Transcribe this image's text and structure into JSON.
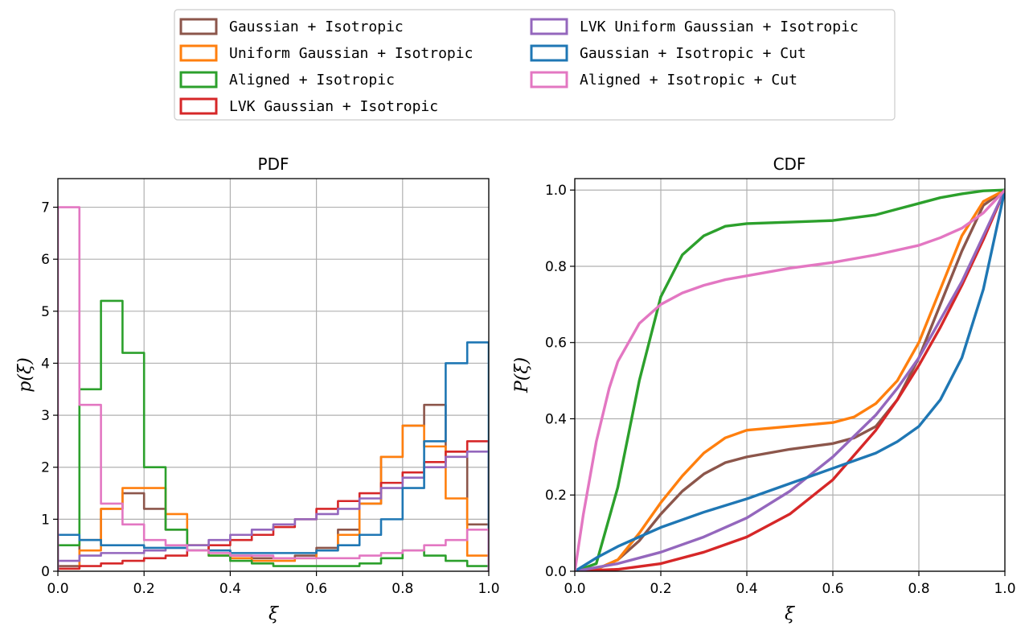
{
  "legend": [
    {
      "label": "Gaussian + Isotropic",
      "color": "#8c564b"
    },
    {
      "label": "Uniform Gaussian + Isotropic",
      "color": "#ff7f0e"
    },
    {
      "label": "Aligned + Isotropic",
      "color": "#2ca02c"
    },
    {
      "label": "LVK Gaussian + Isotropic",
      "color": "#d62728"
    },
    {
      "label": "LVK Uniform Gaussian + Isotropic",
      "color": "#9467bd"
    },
    {
      "label": "Gaussian + Isotropic + Cut",
      "color": "#1f77b4"
    },
    {
      "label": "Aligned + Isotropic + Cut",
      "color": "#e377c2"
    }
  ],
  "chart_data": [
    {
      "type": "histogram",
      "title": "PDF",
      "xlabel": "ξ",
      "ylabel": "p(ξ)",
      "xlim": [
        0,
        1
      ],
      "ylim": [
        0,
        7.55
      ],
      "xticks": [
        "0.0",
        "0.2",
        "0.4",
        "0.6",
        "0.8",
        "1.0"
      ],
      "yticks": [
        "0",
        "1",
        "2",
        "3",
        "4",
        "5",
        "6",
        "7"
      ],
      "grid": true,
      "bin_edges": [
        0,
        0.05,
        0.1,
        0.15,
        0.2,
        0.25,
        0.3,
        0.35,
        0.4,
        0.45,
        0.5,
        0.55,
        0.6,
        0.65,
        0.7,
        0.75,
        0.8,
        0.85,
        0.9,
        0.95,
        1.0
      ],
      "series": [
        {
          "name": "Gaussian + Isotropic",
          "values": [
            0.1,
            0.6,
            1.2,
            1.5,
            1.2,
            0.8,
            0.5,
            0.4,
            0.3,
            0.25,
            0.25,
            0.3,
            0.45,
            0.8,
            1.3,
            2.2,
            2.8,
            3.2,
            2.3,
            0.9
          ]
        },
        {
          "name": "Uniform Gaussian + Isotropic",
          "values": [
            0.05,
            0.4,
            1.2,
            1.6,
            1.6,
            1.1,
            0.5,
            0.3,
            0.25,
            0.2,
            0.2,
            0.25,
            0.4,
            0.7,
            1.3,
            2.2,
            2.8,
            2.4,
            1.4,
            0.3
          ]
        },
        {
          "name": "Aligned + Isotropic",
          "values": [
            0.5,
            3.5,
            5.2,
            4.2,
            2.0,
            0.8,
            0.4,
            0.3,
            0.2,
            0.15,
            0.1,
            0.1,
            0.1,
            0.1,
            0.15,
            0.25,
            0.4,
            0.3,
            0.2,
            0.1
          ]
        },
        {
          "name": "LVK Gaussian + Isotropic",
          "values": [
            0.05,
            0.1,
            0.15,
            0.2,
            0.25,
            0.3,
            0.4,
            0.5,
            0.6,
            0.7,
            0.85,
            1.0,
            1.2,
            1.35,
            1.5,
            1.7,
            1.9,
            2.1,
            2.3,
            2.5
          ]
        },
        {
          "name": "LVK Uniform Gaussian + Isotropic",
          "values": [
            0.2,
            0.3,
            0.35,
            0.35,
            0.4,
            0.45,
            0.5,
            0.6,
            0.7,
            0.8,
            0.9,
            1.0,
            1.1,
            1.2,
            1.4,
            1.6,
            1.8,
            2.0,
            2.2,
            2.3
          ]
        },
        {
          "name": "Gaussian + Isotropic + Cut",
          "values": [
            0.7,
            0.6,
            0.5,
            0.5,
            0.45,
            0.45,
            0.4,
            0.4,
            0.35,
            0.35,
            0.35,
            0.35,
            0.4,
            0.5,
            0.7,
            1.0,
            1.6,
            2.5,
            4.0,
            4.4
          ]
        },
        {
          "name": "Aligned + Isotropic + Cut",
          "values": [
            7.0,
            3.2,
            1.3,
            0.9,
            0.6,
            0.5,
            0.4,
            0.35,
            0.3,
            0.3,
            0.25,
            0.25,
            0.25,
            0.25,
            0.3,
            0.35,
            0.4,
            0.5,
            0.6,
            0.8
          ]
        }
      ]
    },
    {
      "type": "line",
      "title": "CDF",
      "xlabel": "ξ",
      "ylabel": "P(ξ)",
      "xlim": [
        0,
        1
      ],
      "ylim": [
        0,
        1.03
      ],
      "xticks": [
        "0.0",
        "0.2",
        "0.4",
        "0.6",
        "0.8",
        "1.0"
      ],
      "yticks": [
        "0.0",
        "0.2",
        "0.4",
        "0.6",
        "0.8",
        "1.0"
      ],
      "grid": true,
      "series": [
        {
          "name": "Gaussian + Isotropic",
          "x": [
            0,
            0.05,
            0.1,
            0.15,
            0.2,
            0.25,
            0.3,
            0.35,
            0.4,
            0.5,
            0.6,
            0.65,
            0.7,
            0.75,
            0.8,
            0.85,
            0.9,
            0.95,
            1.0
          ],
          "y": [
            0,
            0.005,
            0.03,
            0.08,
            0.15,
            0.21,
            0.255,
            0.285,
            0.3,
            0.32,
            0.335,
            0.35,
            0.38,
            0.45,
            0.56,
            0.7,
            0.84,
            0.96,
            1.0
          ]
        },
        {
          "name": "Uniform Gaussian + Isotropic",
          "x": [
            0,
            0.05,
            0.1,
            0.15,
            0.2,
            0.25,
            0.3,
            0.35,
            0.4,
            0.5,
            0.6,
            0.65,
            0.7,
            0.75,
            0.8,
            0.85,
            0.9,
            0.95,
            1.0
          ],
          "y": [
            0,
            0.005,
            0.03,
            0.1,
            0.18,
            0.25,
            0.31,
            0.35,
            0.37,
            0.38,
            0.39,
            0.405,
            0.44,
            0.5,
            0.6,
            0.74,
            0.88,
            0.97,
            1.0
          ]
        },
        {
          "name": "Aligned + Isotropic",
          "x": [
            0,
            0.05,
            0.1,
            0.15,
            0.2,
            0.25,
            0.3,
            0.35,
            0.4,
            0.5,
            0.6,
            0.7,
            0.75,
            0.8,
            0.85,
            0.9,
            0.95,
            1.0
          ],
          "y": [
            0,
            0.02,
            0.22,
            0.5,
            0.72,
            0.83,
            0.88,
            0.905,
            0.912,
            0.916,
            0.92,
            0.935,
            0.95,
            0.965,
            0.98,
            0.99,
            0.998,
            1.0
          ]
        },
        {
          "name": "LVK Gaussian + Isotropic",
          "x": [
            0,
            0.1,
            0.2,
            0.3,
            0.4,
            0.5,
            0.6,
            0.7,
            0.75,
            0.8,
            0.85,
            0.9,
            0.95,
            1.0
          ],
          "y": [
            0,
            0.005,
            0.02,
            0.05,
            0.09,
            0.15,
            0.24,
            0.37,
            0.45,
            0.54,
            0.64,
            0.75,
            0.87,
            1.0
          ]
        },
        {
          "name": "LVK Uniform Gaussian + Isotropic",
          "x": [
            0,
            0.1,
            0.2,
            0.3,
            0.4,
            0.5,
            0.6,
            0.7,
            0.75,
            0.8,
            0.85,
            0.9,
            0.95,
            1.0
          ],
          "y": [
            0,
            0.02,
            0.05,
            0.09,
            0.14,
            0.21,
            0.3,
            0.41,
            0.48,
            0.56,
            0.66,
            0.76,
            0.88,
            1.0
          ]
        },
        {
          "name": "Gaussian + Isotropic + Cut",
          "x": [
            0,
            0.05,
            0.1,
            0.15,
            0.2,
            0.3,
            0.4,
            0.5,
            0.6,
            0.7,
            0.75,
            0.8,
            0.85,
            0.9,
            0.95,
            1.0
          ],
          "y": [
            0,
            0.035,
            0.065,
            0.09,
            0.115,
            0.155,
            0.19,
            0.23,
            0.27,
            0.31,
            0.34,
            0.38,
            0.45,
            0.56,
            0.74,
            1.0
          ]
        },
        {
          "name": "Aligned + Isotropic + Cut",
          "x": [
            0,
            0.02,
            0.05,
            0.08,
            0.1,
            0.15,
            0.2,
            0.25,
            0.3,
            0.35,
            0.4,
            0.5,
            0.6,
            0.7,
            0.8,
            0.85,
            0.9,
            0.95,
            1.0
          ],
          "y": [
            0,
            0.15,
            0.34,
            0.48,
            0.55,
            0.65,
            0.7,
            0.73,
            0.75,
            0.765,
            0.775,
            0.795,
            0.81,
            0.83,
            0.855,
            0.875,
            0.9,
            0.94,
            1.0
          ]
        }
      ]
    }
  ]
}
